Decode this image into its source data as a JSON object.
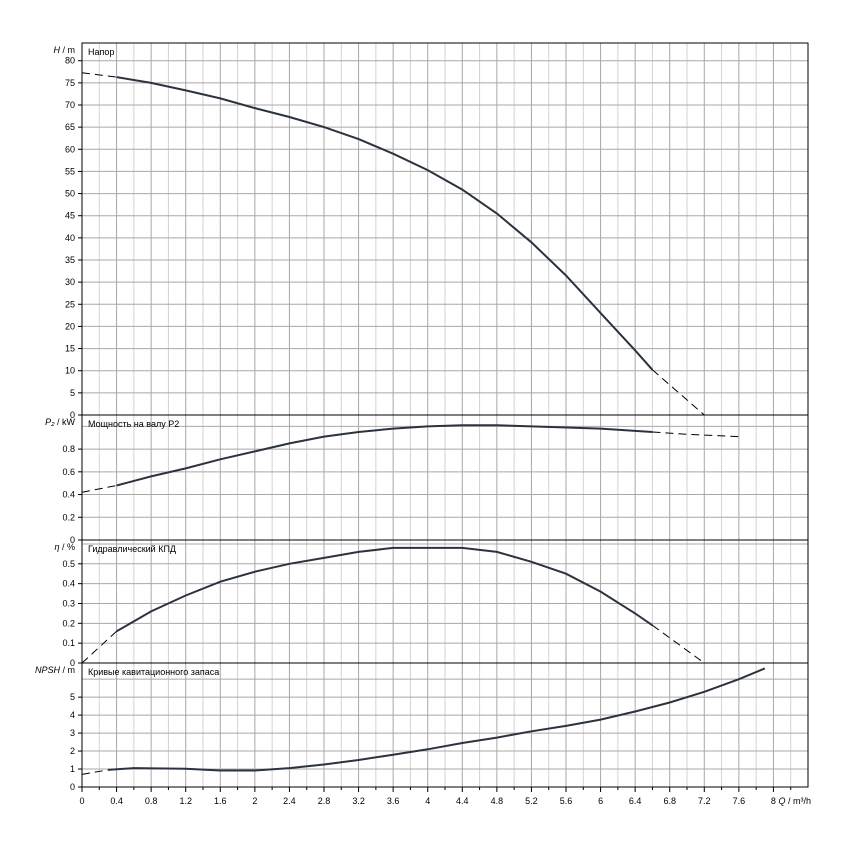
{
  "chart_data": {
    "type": "line",
    "xlabel_symbol": "Q",
    "xlabel_unit": "/ m³/h",
    "xlim": [
      0,
      8.4
    ],
    "x_ticks": [
      "0",
      "0.4",
      "0.8",
      "1.2",
      "1.6",
      "2",
      "2.4",
      "2.8",
      "3.2",
      "3.6",
      "4",
      "4.4",
      "4.8",
      "5.2",
      "5.6",
      "6",
      "6.4",
      "6.8",
      "7.2",
      "7.6",
      "8"
    ],
    "colors": {
      "curve": "#2b3340",
      "grid_major": "#a8a8a8",
      "grid_minor": "#d2d2d2"
    },
    "panels": [
      {
        "key": "head",
        "title": "Напор",
        "ylabel_symbol": "H",
        "ylabel_unit": "/ m",
        "ylim": [
          0,
          84
        ],
        "y_ticks": [
          "0",
          "5",
          "10",
          "15",
          "20",
          "25",
          "30",
          "35",
          "40",
          "45",
          "50",
          "55",
          "60",
          "65",
          "70",
          "75",
          "80"
        ],
        "dash_start": [
          [
            0,
            77.3
          ],
          [
            0.4,
            76.3
          ]
        ],
        "solid": [
          [
            0.4,
            76.3
          ],
          [
            0.8,
            75.0
          ],
          [
            1.2,
            73.3
          ],
          [
            1.6,
            71.5
          ],
          [
            2.0,
            69.3
          ],
          [
            2.4,
            67.3
          ],
          [
            2.8,
            65.0
          ],
          [
            3.2,
            62.3
          ],
          [
            3.6,
            59.0
          ],
          [
            4.0,
            55.3
          ],
          [
            4.4,
            50.9
          ],
          [
            4.8,
            45.5
          ],
          [
            5.2,
            39.0
          ],
          [
            5.6,
            31.5
          ],
          [
            6.0,
            23.0
          ],
          [
            6.4,
            14.6
          ],
          [
            6.6,
            10.2
          ]
        ],
        "dash_end": [
          [
            6.6,
            10.2
          ],
          [
            7.2,
            0
          ]
        ]
      },
      {
        "key": "power",
        "title": "Мощность на валу P2",
        "ylabel_symbol": "P₂",
        "ylabel_unit": "/ kW",
        "ylim": [
          0,
          1.1
        ],
        "y_ticks": [
          "0",
          "0.2",
          "0.4",
          "0.6",
          "0.8"
        ],
        "dash_start": [
          [
            0,
            0.42
          ],
          [
            0.4,
            0.48
          ]
        ],
        "solid": [
          [
            0.4,
            0.48
          ],
          [
            0.8,
            0.56
          ],
          [
            1.2,
            0.63
          ],
          [
            1.6,
            0.71
          ],
          [
            2.0,
            0.78
          ],
          [
            2.4,
            0.85
          ],
          [
            2.8,
            0.91
          ],
          [
            3.2,
            0.95
          ],
          [
            3.6,
            0.98
          ],
          [
            4.0,
            1.0
          ],
          [
            4.4,
            1.01
          ],
          [
            4.8,
            1.01
          ],
          [
            5.2,
            1.0
          ],
          [
            5.6,
            0.99
          ],
          [
            6.0,
            0.98
          ],
          [
            6.4,
            0.96
          ],
          [
            6.6,
            0.95
          ]
        ],
        "dash_end": [
          [
            6.6,
            0.95
          ],
          [
            7.0,
            0.93
          ],
          [
            7.6,
            0.91
          ]
        ]
      },
      {
        "key": "efficiency",
        "title": "Гидравлический КПД",
        "ylabel_symbol": "η",
        "ylabel_unit": "/ %",
        "ylim": [
          0,
          0.62
        ],
        "y_ticks": [
          "0",
          "0.1",
          "0.2",
          "0.3",
          "0.4",
          "0.5"
        ],
        "dash_start": [
          [
            0,
            0.0
          ],
          [
            0.4,
            0.16
          ]
        ],
        "solid": [
          [
            0.4,
            0.16
          ],
          [
            0.8,
            0.26
          ],
          [
            1.2,
            0.34
          ],
          [
            1.6,
            0.41
          ],
          [
            2.0,
            0.46
          ],
          [
            2.4,
            0.5
          ],
          [
            2.8,
            0.53
          ],
          [
            3.2,
            0.56
          ],
          [
            3.6,
            0.58
          ],
          [
            4.0,
            0.58
          ],
          [
            4.4,
            0.58
          ],
          [
            4.8,
            0.56
          ],
          [
            5.2,
            0.51
          ],
          [
            5.6,
            0.45
          ],
          [
            6.0,
            0.36
          ],
          [
            6.4,
            0.25
          ],
          [
            6.6,
            0.19
          ]
        ],
        "dash_end": [
          [
            6.6,
            0.19
          ],
          [
            7.2,
            0
          ]
        ]
      },
      {
        "key": "npsh",
        "title": "Кривые кавитационного запаса",
        "ylabel_symbol": "NPSH",
        "ylabel_unit": "/ m",
        "ylim": [
          0,
          6.9
        ],
        "y_ticks": [
          "0",
          "1",
          "2",
          "3",
          "4",
          "5"
        ],
        "dash_start": [
          [
            0,
            0.7
          ],
          [
            0.3,
            0.95
          ]
        ],
        "solid": [
          [
            0.3,
            0.95
          ],
          [
            0.6,
            1.05
          ],
          [
            1.2,
            1.02
          ],
          [
            1.6,
            0.92
          ],
          [
            2.0,
            0.92
          ],
          [
            2.4,
            1.05
          ],
          [
            2.8,
            1.25
          ],
          [
            3.2,
            1.5
          ],
          [
            3.6,
            1.8
          ],
          [
            4.0,
            2.1
          ],
          [
            4.4,
            2.45
          ],
          [
            4.8,
            2.75
          ],
          [
            5.2,
            3.1
          ],
          [
            5.6,
            3.4
          ],
          [
            6.0,
            3.75
          ],
          [
            6.4,
            4.2
          ],
          [
            6.8,
            4.7
          ],
          [
            7.2,
            5.3
          ],
          [
            7.6,
            6.0
          ],
          [
            7.9,
            6.6
          ]
        ],
        "dash_end": []
      }
    ]
  }
}
